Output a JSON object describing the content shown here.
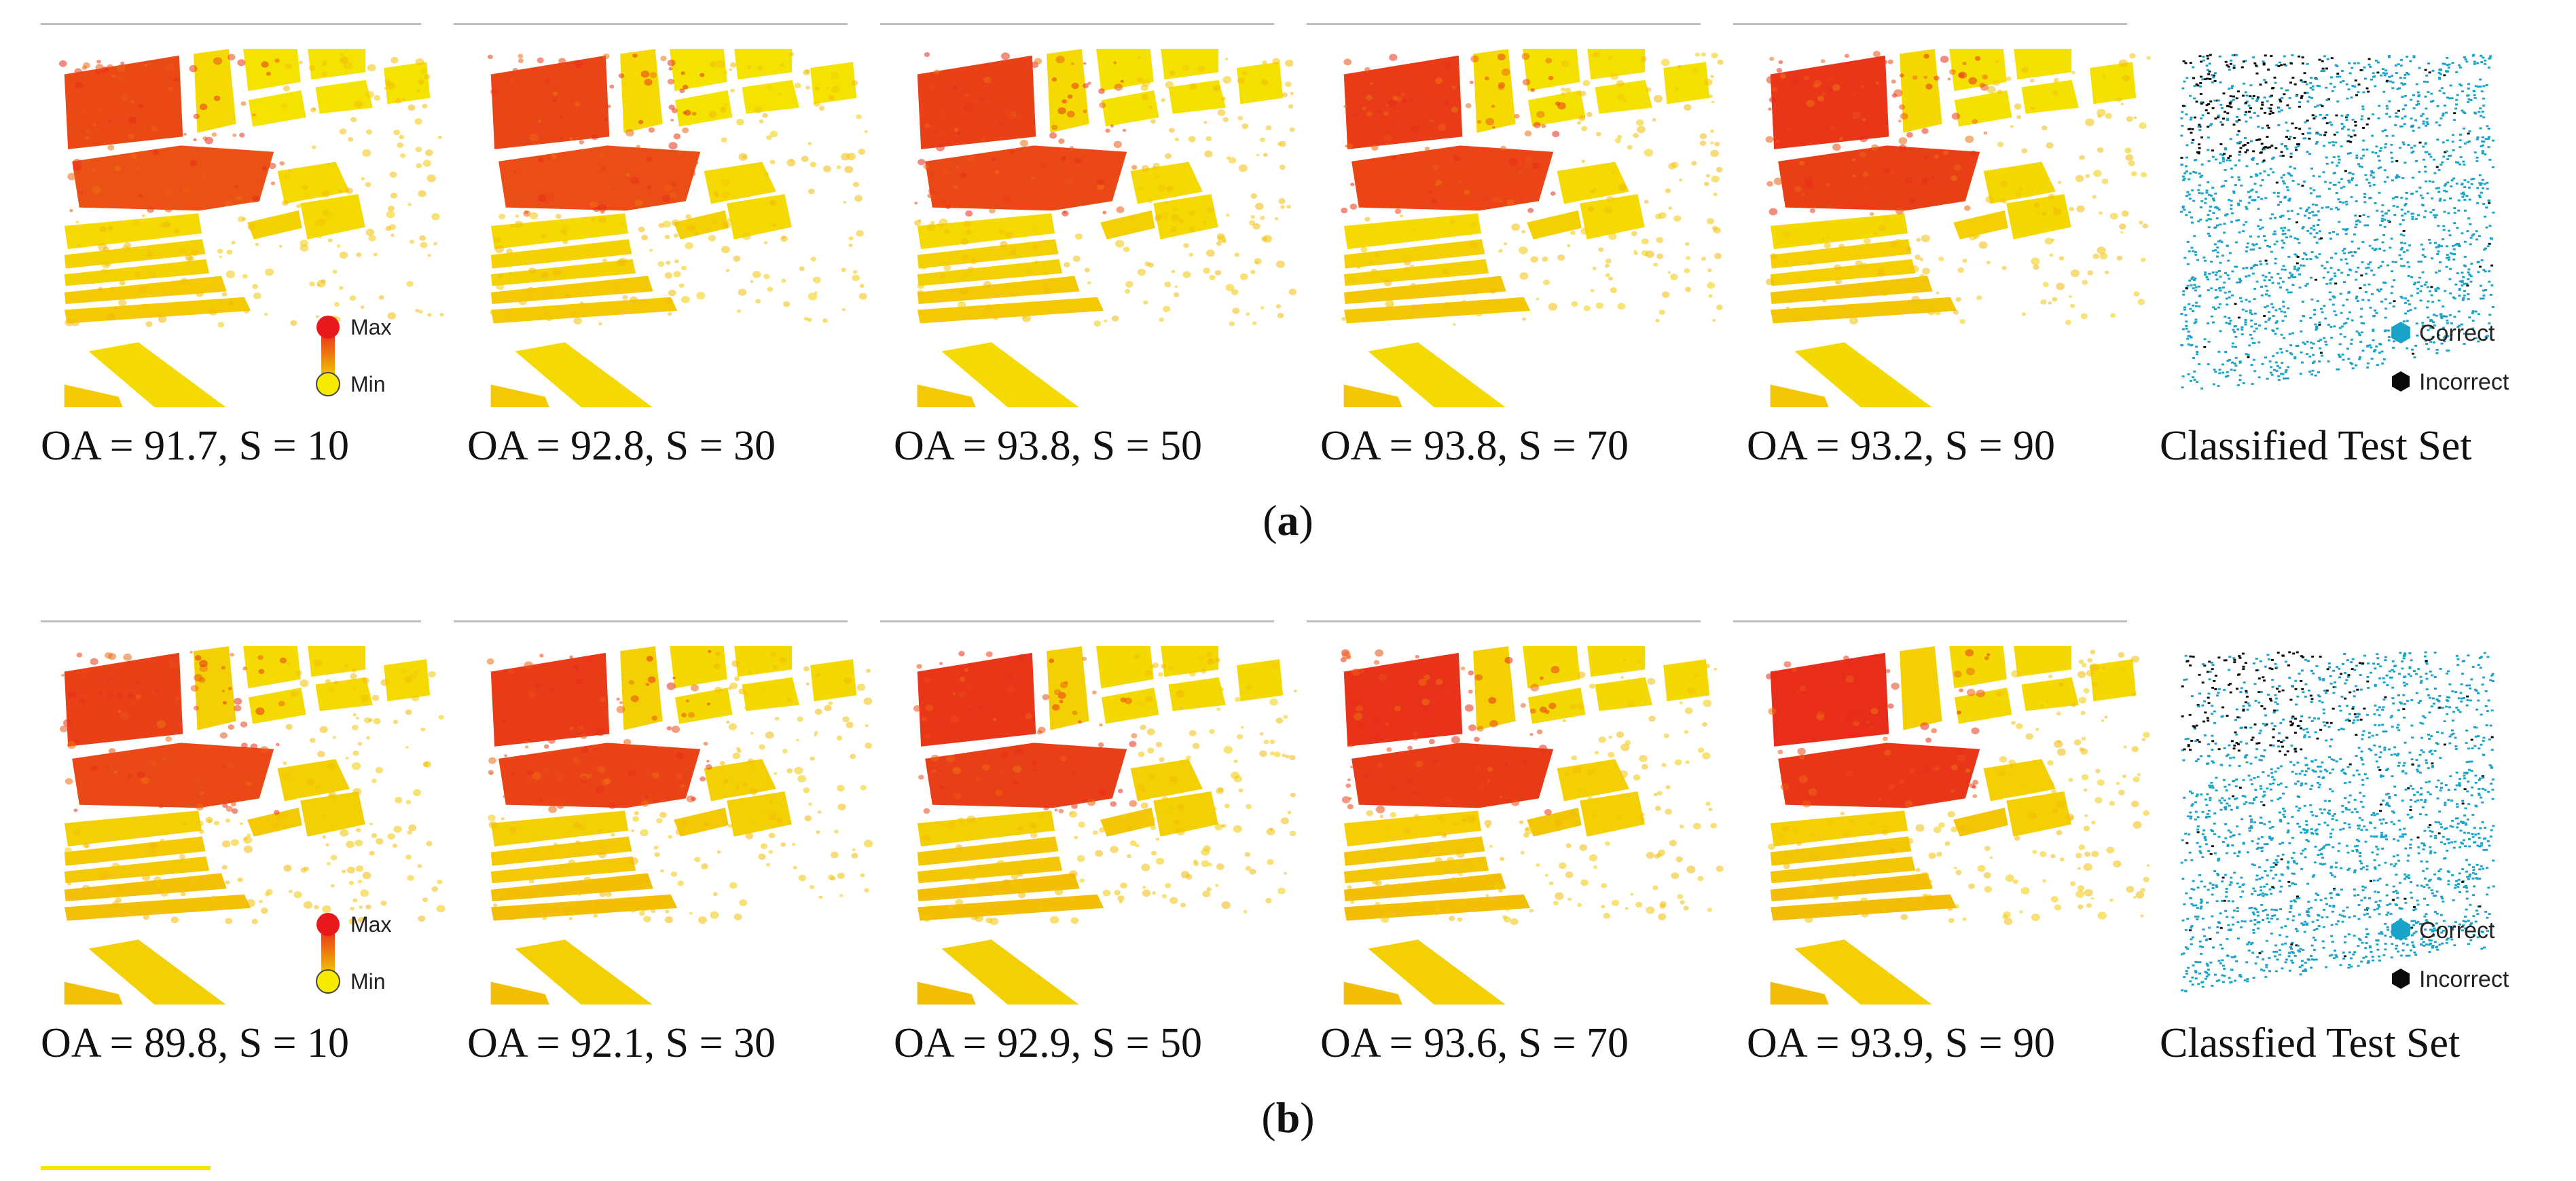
{
  "figure": {
    "rows": [
      {
        "label": "a",
        "panels": [
          {
            "caption": "OA = 91.7, S = 10",
            "type": "heatmap"
          },
          {
            "caption": "OA = 92.8, S = 30",
            "type": "heatmap"
          },
          {
            "caption": "OA = 93.8, S = 50",
            "type": "heatmap"
          },
          {
            "caption": "OA = 93.8, S = 70",
            "type": "heatmap"
          },
          {
            "caption": "OA = 93.2, S = 90",
            "type": "heatmap"
          },
          {
            "caption": "Classified Test Set",
            "type": "classified"
          }
        ]
      },
      {
        "label": "b",
        "panels": [
          {
            "caption": "OA = 89.8, S = 10",
            "type": "heatmap"
          },
          {
            "caption": "OA = 92.1, S = 30",
            "type": "heatmap"
          },
          {
            "caption": "OA = 92.9, S = 50",
            "type": "heatmap"
          },
          {
            "caption": "OA = 93.6, S = 70",
            "type": "heatmap"
          },
          {
            "caption": "OA = 93.9, S = 90",
            "type": "heatmap"
          },
          {
            "caption": "Classfied Test Set",
            "type": "classified"
          }
        ]
      }
    ],
    "legend": {
      "max_label": "Max",
      "min_label": "Min",
      "correct_label": "Correct",
      "incorrect_label": "Incorrect"
    },
    "colors": {
      "max": "#e8191a",
      "min": "#f5ea00",
      "correct": "#1aa3c8",
      "incorrect": "#0a0a0a",
      "rule": "#bdbdbd"
    }
  }
}
